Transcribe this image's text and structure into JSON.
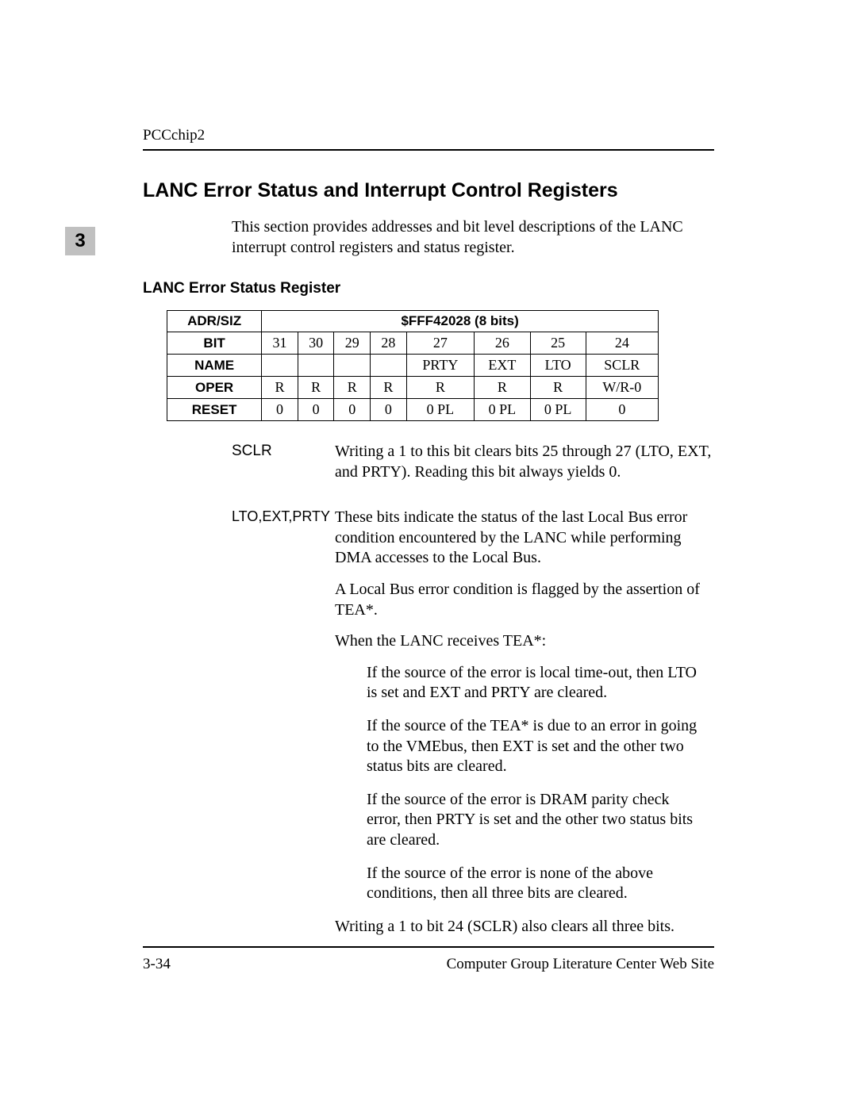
{
  "header": {
    "chip": "PCCchip2",
    "chapter": "3"
  },
  "title": "LANC Error Status and Interrupt Control Registers",
  "intro": "This section provides addresses and bit level descriptions of the LANC interrupt control registers and status register.",
  "subtitle": "LANC Error Status Register",
  "table": {
    "row_labels": {
      "adr": "ADR/SIZ",
      "bit": "BIT",
      "name": "NAME",
      "oper": "OPER",
      "reset": "RESET"
    },
    "adr_value": "$FFF42028 (8 bits)",
    "bits": [
      "31",
      "30",
      "29",
      "28",
      "27",
      "26",
      "25",
      "24"
    ],
    "names": [
      "",
      "",
      "",
      "",
      "PRTY",
      "EXT",
      "LTO",
      "SCLR"
    ],
    "opers": [
      "R",
      "R",
      "R",
      "R",
      "R",
      "R",
      "R",
      "W/R-0"
    ],
    "resets": [
      "0",
      "0",
      "0",
      "0",
      "0 PL",
      "0 PL",
      "0 PL",
      "0"
    ]
  },
  "defs": {
    "sclr": {
      "term": "SCLR",
      "body": "Writing a 1 to this bit clears bits 25 through 27 (LTO, EXT, and PRTY). Reading this bit always yields 0."
    },
    "lto": {
      "term": "LTO,EXT,PRTY",
      "p1": "These bits indicate the status of the last Local Bus error condition encountered by the LANC while performing DMA accesses to the Local Bus.",
      "p2": "A Local Bus error condition is flagged by the assertion of TEA*.",
      "p3": "When the LANC receives TEA*:",
      "sub1": "If the source of the error is local time-out, then LTO is set and EXT and PRTY are cleared.",
      "sub2": "If the source of the TEA* is due to an error in going to the VMEbus, then EXT is set and the other two status bits are cleared.",
      "sub3": "If the source of the error is DRAM parity check error, then PRTY is set and the other two status bits are cleared.",
      "sub4": "If the source of the error is none of the above conditions, then all three bits are cleared.",
      "p4": "Writing a 1 to bit 24 (SCLR) also clears all three bits."
    }
  },
  "footer": {
    "left": "3-34",
    "right": "Computer Group Literature Center Web Site"
  }
}
